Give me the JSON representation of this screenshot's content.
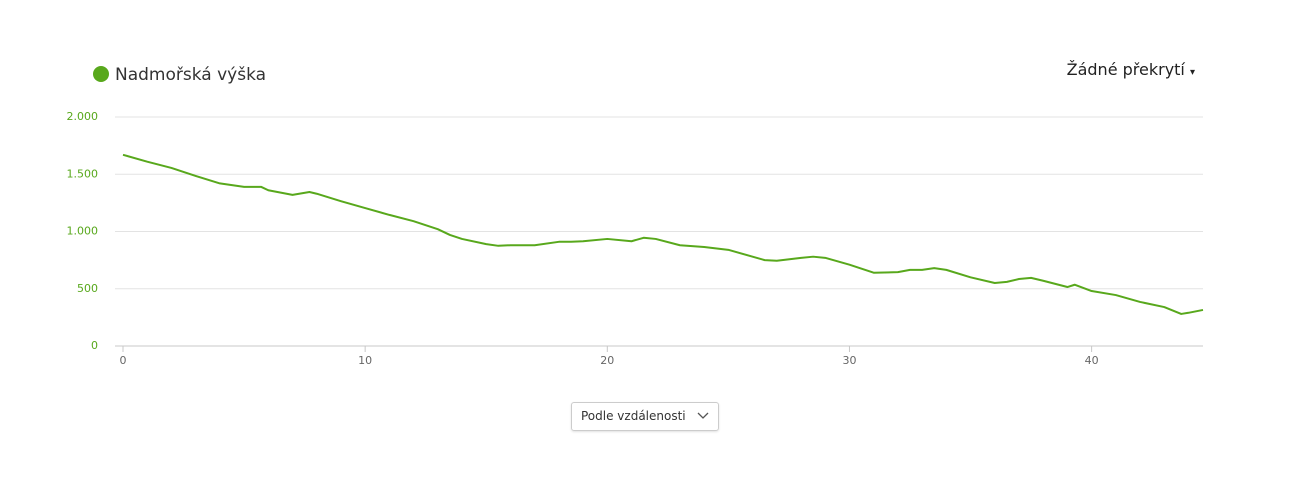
{
  "chart_data": {
    "type": "line",
    "x": [
      0,
      1,
      2,
      3,
      4,
      5,
      5.7,
      6,
      7,
      7.7,
      8,
      9,
      10,
      11,
      12,
      13,
      13.5,
      14,
      15,
      15.5,
      16,
      17,
      18,
      18.5,
      19,
      20,
      21,
      21.5,
      22,
      23,
      24,
      25,
      26,
      26.5,
      27,
      28,
      28.5,
      29,
      30,
      31,
      32,
      32.5,
      33,
      33.5,
      34,
      35,
      36,
      36.5,
      37,
      37.5,
      38,
      39,
      39.3,
      40,
      41,
      42,
      43,
      43.7,
      44,
      44.6
    ],
    "series": [
      {
        "name": "Nadmořská výška",
        "color": "#58a81c",
        "values": [
          1670,
          1610,
          1555,
          1485,
          1420,
          1390,
          1390,
          1360,
          1320,
          1345,
          1330,
          1265,
          1205,
          1145,
          1090,
          1020,
          970,
          935,
          890,
          875,
          880,
          880,
          910,
          910,
          915,
          935,
          915,
          945,
          935,
          880,
          865,
          840,
          780,
          750,
          745,
          770,
          780,
          770,
          710,
          640,
          645,
          665,
          665,
          680,
          665,
          600,
          550,
          560,
          585,
          595,
          570,
          515,
          535,
          480,
          445,
          385,
          340,
          280,
          290,
          315
        ]
      }
    ],
    "xlim": [
      0,
      44.6
    ],
    "xticks": [
      0,
      10,
      20,
      30,
      40
    ],
    "ylim": [
      0,
      2000
    ],
    "yticks": [
      0,
      500,
      {
        "value": 1000,
        "label": "1.000"
      },
      {
        "value": 1500,
        "label": "1.500"
      },
      {
        "value": 2000,
        "label": "2.000"
      }
    ],
    "grid": true
  },
  "overlay_menu": "Žádné překrytí",
  "sort_select": "Podle vzdálenosti"
}
